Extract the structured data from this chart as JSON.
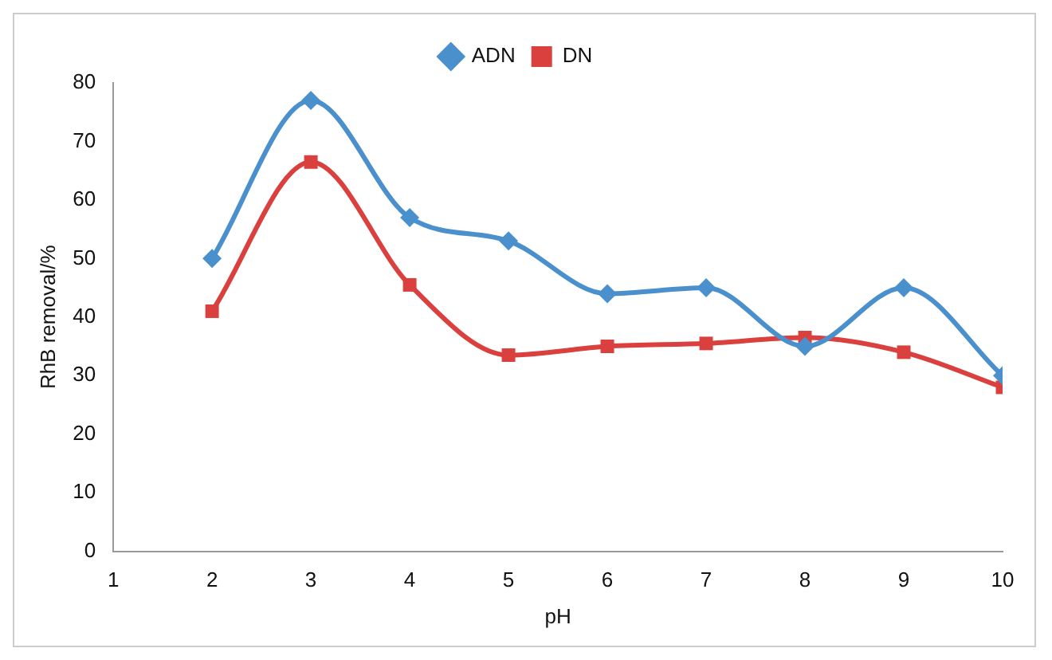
{
  "chart_data": {
    "type": "line",
    "xlabel": "pH",
    "ylabel": "RhB removal/%",
    "x": [
      2,
      3,
      4,
      5,
      6,
      7,
      8,
      9,
      10
    ],
    "series": [
      {
        "name": "ADN",
        "color": "#4a90cc",
        "marker": "diamond",
        "values": [
          50,
          77,
          57,
          53,
          44,
          45,
          35,
          45,
          30
        ]
      },
      {
        "name": "DN",
        "color": "#d9403e",
        "marker": "square",
        "values": [
          41,
          66.5,
          45.5,
          33.5,
          35,
          35.5,
          36.5,
          34,
          28
        ]
      }
    ],
    "xlim": [
      1,
      10
    ],
    "xticks": [
      1,
      2,
      3,
      4,
      5,
      6,
      7,
      8,
      9,
      10
    ],
    "ylim": [
      0,
      80
    ],
    "yticks": [
      0,
      10,
      20,
      30,
      40,
      50,
      60,
      70,
      80
    ],
    "grid": false,
    "legend": "top"
  }
}
